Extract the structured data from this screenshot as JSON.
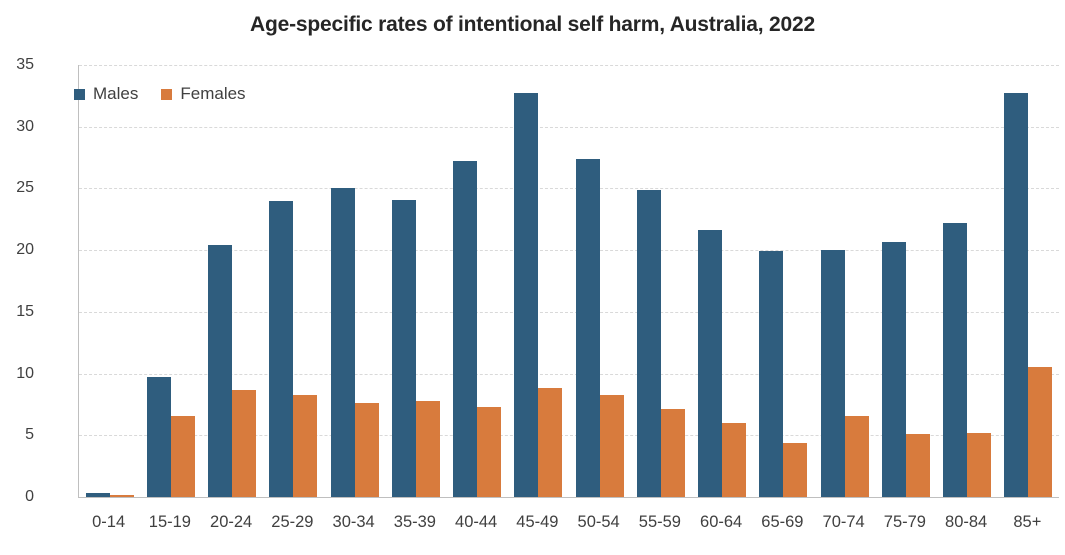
{
  "chart_data": {
    "type": "bar",
    "title": "Age-specific rates of intentional self harm, Australia, 2022",
    "categories": [
      "0-14",
      "15-19",
      "20-24",
      "25-29",
      "30-34",
      "35-39",
      "40-44",
      "45-49",
      "50-54",
      "55-59",
      "60-64",
      "65-69",
      "70-74",
      "75-79",
      "80-84",
      "85+"
    ],
    "series": [
      {
        "name": "Males",
        "color": "#2F5D7E",
        "values": [
          0.3,
          9.7,
          20.4,
          24.0,
          25.0,
          24.1,
          27.2,
          32.7,
          27.4,
          24.9,
          21.6,
          19.9,
          20.0,
          20.7,
          22.2,
          32.7
        ]
      },
      {
        "name": "Females",
        "color": "#D87B3D",
        "values": [
          0.2,
          6.6,
          8.7,
          8.3,
          7.6,
          7.8,
          7.3,
          8.8,
          8.3,
          7.1,
          6.0,
          4.4,
          6.6,
          5.1,
          5.2,
          10.5
        ]
      }
    ],
    "xlabel": "",
    "ylabel": "",
    "ylim": [
      0,
      35
    ],
    "yticks": [
      0,
      5,
      10,
      15,
      20,
      25,
      30,
      35
    ],
    "grid": "horizontal-dashed",
    "legend_position": "top-left-inside"
  },
  "colors": {
    "grid": "#D9D9D9",
    "axis": "#BFBFBF",
    "tick_text": "#404040",
    "title_text": "#262626",
    "background": "#FFFFFF"
  }
}
